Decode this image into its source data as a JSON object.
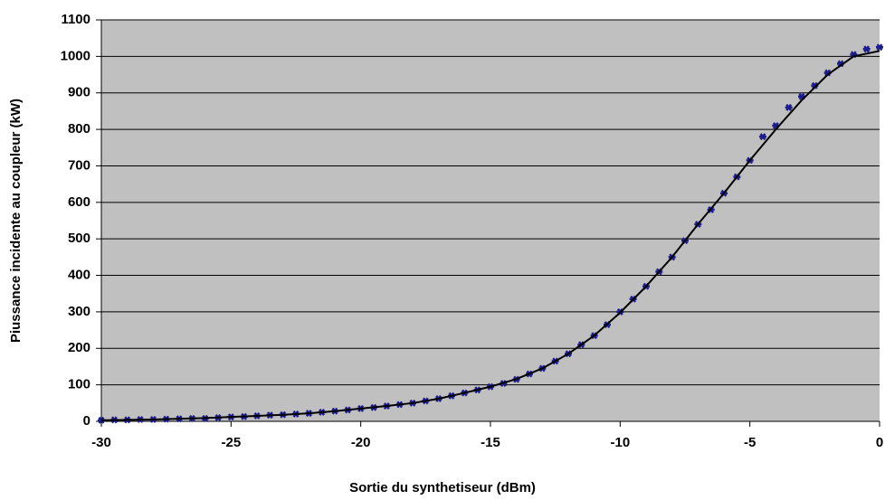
{
  "chart_data": {
    "type": "scatter",
    "xlabel": "Sortie du synthetiseur (dBm)",
    "ylabel": "Piussance incidente au coupleur (kW)",
    "xlim": [
      -30,
      0
    ],
    "xticks": [
      -30,
      -25,
      -20,
      -15,
      -10,
      -5,
      0
    ],
    "ylim": [
      0,
      1100
    ],
    "yticks": [
      0,
      100,
      200,
      300,
      400,
      500,
      600,
      700,
      800,
      900,
      1000,
      1100
    ],
    "grid": true,
    "background": "#c0c0c0",
    "series": [
      {
        "type": "scatter",
        "color": "#1c1c8c",
        "x": [
          -30,
          -29.5,
          -29,
          -28.5,
          -28,
          -27.5,
          -27,
          -26.5,
          -26,
          -25.5,
          -25,
          -24.5,
          -24,
          -23.5,
          -23,
          -22.5,
          -22,
          -21.5,
          -21,
          -20.5,
          -20,
          -19.5,
          -19,
          -18.5,
          -18,
          -17.5,
          -17,
          -16.5,
          -16,
          -15.5,
          -15,
          -14.5,
          -14,
          -13.5,
          -13,
          -12.5,
          -12,
          -11.5,
          -11,
          -10.5,
          -10,
          -9.5,
          -9,
          -8.5,
          -8,
          -7.5,
          -7,
          -6.5,
          -6,
          -5.5,
          -5,
          -4.5,
          -4,
          -3.5,
          -3,
          -2.5,
          -2,
          -1.5,
          -1,
          -0.5,
          0
        ],
        "values": [
          3,
          4,
          4,
          5,
          5,
          6,
          7,
          8,
          8,
          10,
          12,
          13,
          15,
          17,
          18,
          20,
          22,
          25,
          28,
          31,
          35,
          38,
          42,
          46,
          50,
          56,
          62,
          70,
          78,
          86,
          95,
          104,
          115,
          130,
          145,
          165,
          185,
          210,
          235,
          265,
          300,
          335,
          370,
          410,
          450,
          495,
          540,
          580,
          625,
          670,
          715,
          780,
          810,
          860,
          890,
          920,
          955,
          980,
          1005,
          1020,
          1025
        ]
      },
      {
        "type": "line",
        "color": "#000000",
        "x": [
          -30,
          -29,
          -28,
          -27,
          -26,
          -25,
          -24,
          -23,
          -22,
          -21,
          -20,
          -19,
          -18,
          -17,
          -16,
          -15,
          -14,
          -13,
          -12,
          -11,
          -10,
          -9,
          -8,
          -7,
          -6,
          -5,
          -4,
          -3,
          -2,
          -1,
          0
        ],
        "values": [
          3,
          4,
          5,
          7,
          9,
          12,
          15,
          18,
          22,
          28,
          35,
          42,
          50,
          62,
          78,
          95,
          116,
          145,
          185,
          235,
          298,
          370,
          450,
          540,
          625,
          715,
          800,
          880,
          950,
          1000,
          1015
        ]
      }
    ]
  }
}
